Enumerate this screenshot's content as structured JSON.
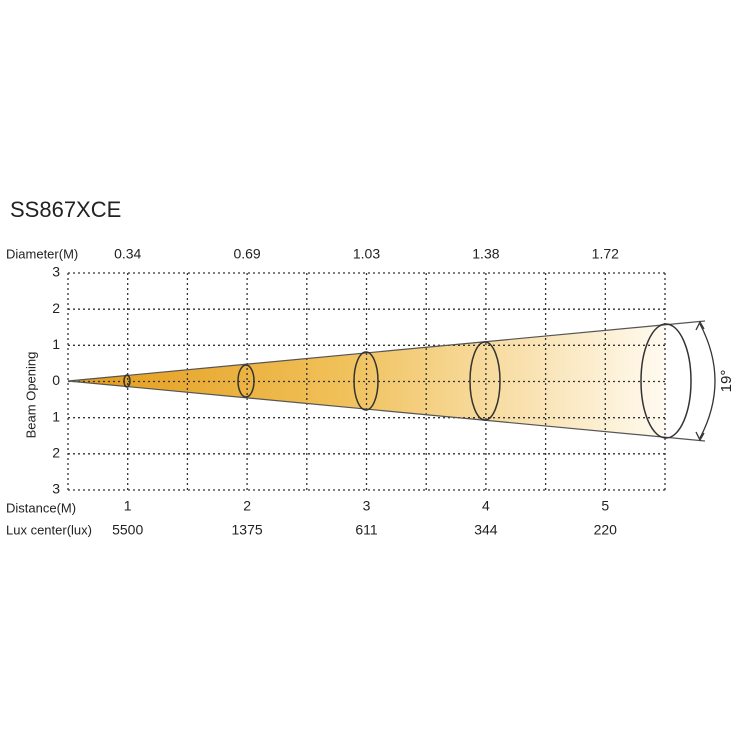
{
  "title": "SS867XCE",
  "diameter": {
    "label": "Diameter(M)",
    "values": [
      "0.34",
      "0.69",
      "1.03",
      "1.38",
      "1.72"
    ]
  },
  "beam_opening": {
    "label": "Beam Opening",
    "ticks": [
      "3",
      "2",
      "1",
      "0",
      "1",
      "2",
      "3"
    ]
  },
  "distance": {
    "label": "Distance(M)",
    "values": [
      "1",
      "2",
      "3",
      "4",
      "5"
    ]
  },
  "lux_center": {
    "label": "Lux center(lux)",
    "values": [
      "5500",
      "1375",
      "611",
      "344",
      "220"
    ]
  },
  "beam_angle": "19°"
}
